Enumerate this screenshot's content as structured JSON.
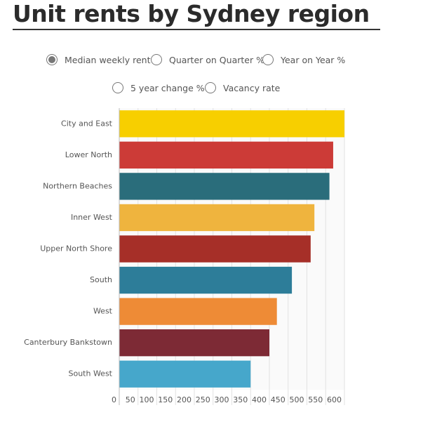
{
  "title": "Unit rents by Sydney region",
  "options": [
    {
      "label": "Median weekly rent",
      "selected": true
    },
    {
      "label": "Quarter on Quarter %",
      "selected": false
    },
    {
      "label": "Year on Year %",
      "selected": false
    },
    {
      "label": "5 year change %",
      "selected": false
    },
    {
      "label": "Vacancy rate",
      "selected": false
    }
  ],
  "chart_data": {
    "type": "bar",
    "orientation": "horizontal",
    "categories": [
      "City and East",
      "Lower North",
      "Northern Beaches",
      "Inner West",
      "Upper North Shore",
      "South",
      "West",
      "Canterbury Bankstown",
      "South West"
    ],
    "values": [
      600,
      570,
      560,
      520,
      510,
      460,
      420,
      400,
      350
    ],
    "colors": [
      "#f7cf00",
      "#cc3b37",
      "#2a6d7b",
      "#efb43e",
      "#a62f28",
      "#2d7d99",
      "#ee8b36",
      "#7d2a35",
      "#46a7cb"
    ],
    "xlim": [
      0,
      600
    ],
    "xticks": [
      0,
      50,
      100,
      150,
      200,
      250,
      300,
      350,
      400,
      450,
      500,
      550,
      600
    ],
    "grid": true
  }
}
